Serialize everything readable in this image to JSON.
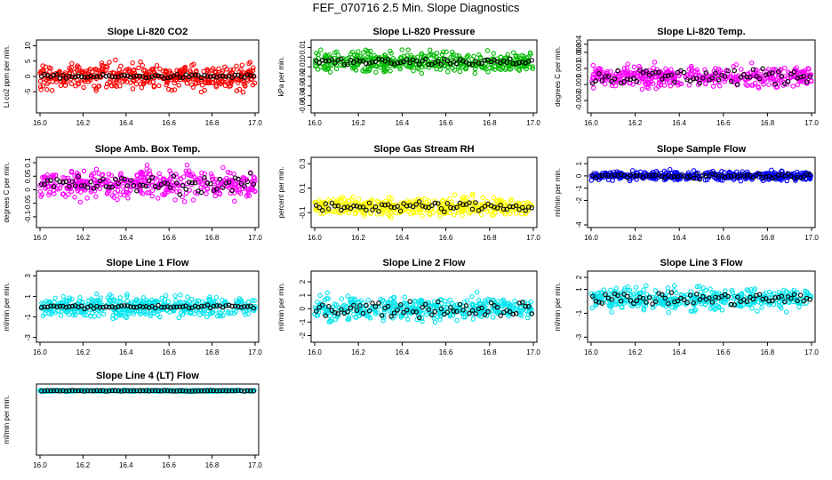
{
  "title": "FEF_070716  2.5 Min. Slope Diagnostics",
  "chart_data": [
    {
      "type": "scatter",
      "title": "Slope Li-820 CO2",
      "ylabel": "Li co2 ppm per min.",
      "color": "#ff0000",
      "xlim": [
        16.0,
        17.0
      ],
      "xticks": [
        "16.0",
        "16.2",
        "16.4",
        "16.6",
        "16.8",
        "17.0"
      ],
      "ylim": [
        -11,
        11
      ],
      "yticks": [
        -5,
        0,
        5,
        10
      ],
      "base": 0,
      "spread": 4,
      "refspread": 0.6
    },
    {
      "type": "scatter",
      "title": "Slope Li-820 Pressure",
      "ylabel": "kPa per min.",
      "color": "#00bb00",
      "xlim": [
        16.0,
        17.0
      ],
      "xticks": [
        "16.0",
        "16.2",
        "16.4",
        "16.6",
        "16.8",
        "17.0"
      ],
      "ylim": [
        -0.055,
        0.015
      ],
      "yticks": [
        -0.05,
        -0.04,
        -0.03,
        -0.02,
        -0.01,
        0.0,
        0.01
      ],
      "base": -0.005,
      "spread": 0.01,
      "refspread": 0.004
    },
    {
      "type": "scatter",
      "title": "Slope Li-820 Temp.",
      "ylabel": "degrees C per min.",
      "color": "#ff00ff",
      "xlim": [
        16.0,
        17.0
      ],
      "xticks": [
        "16.0",
        "16.2",
        "16.4",
        "16.6",
        "16.8",
        "17.0"
      ],
      "ylim": [
        -0.0042,
        0.0042
      ],
      "yticks": [
        -0.003,
        -0.001,
        0.001,
        0.003
      ],
      "extraTick": "0.004",
      "base": 0,
      "spread": 0.0012,
      "refspread": 0.001
    },
    {
      "type": "scatter",
      "title": "Slope Amb. Box Temp.",
      "ylabel": "degrees C per min.",
      "color": "#ff00ff",
      "xlim": [
        16.0,
        17.0
      ],
      "xticks": [
        "16.0",
        "16.2",
        "16.4",
        "16.6",
        "16.8",
        "17.0"
      ],
      "ylim": [
        -0.13,
        0.11
      ],
      "yticks": [
        -0.1,
        0.0,
        0.05,
        0.1
      ],
      "extraTick": "-0.05",
      "base": 0.02,
      "spread": 0.05,
      "refspread": 0.03
    },
    {
      "type": "scatter",
      "title": "Slope Gas Stream RH",
      "ylabel": "percent per min.",
      "color": "#ffff00",
      "xlim": [
        16.0,
        17.0
      ],
      "xticks": [
        "16.0",
        "16.2",
        "16.4",
        "16.6",
        "16.8",
        "17.0"
      ],
      "ylim": [
        -0.2,
        0.33
      ],
      "yticks": [
        -0.1,
        0.1,
        0.3
      ],
      "base": -0.05,
      "spread": 0.07,
      "refspread": 0.04
    },
    {
      "type": "scatter",
      "title": "Slope Sample Flow",
      "ylabel": "ml/min per min.",
      "color": "#0000ff",
      "xlim": [
        16.0,
        17.0
      ],
      "xticks": [
        "16.0",
        "16.2",
        "16.4",
        "16.6",
        "16.8",
        "17.0"
      ],
      "ylim": [
        -4,
        1.3
      ],
      "yticks": [
        -4,
        -2,
        0,
        1
      ],
      "extraTick": "-1",
      "base": 0,
      "spread": 0.35,
      "refspread": 0.2
    },
    {
      "type": "scatter",
      "title": "Slope Line 1 Flow",
      "ylabel": "ml/min per min.",
      "color": "#00e5ee",
      "xlim": [
        16.0,
        17.0
      ],
      "xticks": [
        "16.0",
        "16.2",
        "16.4",
        "16.6",
        "16.8",
        "17.0"
      ],
      "ylim": [
        -3.2,
        3.2
      ],
      "yticks": [
        -3,
        -1,
        1,
        3
      ],
      "base": 0,
      "spread": 1.0,
      "refspread": 0.15
    },
    {
      "type": "scatter",
      "title": "Slope Line 2 Flow",
      "ylabel": "ml/min per min.",
      "color": "#00e5ee",
      "xlim": [
        16.0,
        17.0
      ],
      "xticks": [
        "16.0",
        "16.2",
        "16.4",
        "16.6",
        "16.8",
        "17.0"
      ],
      "ylim": [
        -2.3,
        2.6
      ],
      "yticks": [
        -2,
        -1,
        0,
        1,
        2
      ],
      "base": 0,
      "spread": 0.8,
      "refspread": 0.6
    },
    {
      "type": "scatter",
      "title": "Slope Line 3 Flow",
      "ylabel": "ml/min per min.",
      "color": "#00e5ee",
      "xlim": [
        16.0,
        17.0
      ],
      "xticks": [
        "16.0",
        "16.2",
        "16.4",
        "16.6",
        "16.8",
        "17.0"
      ],
      "ylim": [
        -3.2,
        2.3
      ],
      "yticks": [
        -3,
        -1,
        1,
        2
      ],
      "base": 0.2,
      "spread": 0.9,
      "refspread": 0.5
    },
    {
      "type": "scatter",
      "title": "Slope Line 4 (LT) Flow",
      "ylabel": "ml/min per min.",
      "color": "#00e5ee",
      "xlim": [
        16.0,
        17.0
      ],
      "xticks": [
        "16.0",
        "16.2",
        "16.4",
        "16.6",
        "16.8",
        "17.0"
      ],
      "ylim": [
        -3.0,
        0.2
      ],
      "yticks": [],
      "base": 0,
      "spread": 0.03,
      "refspread": 0.02
    }
  ]
}
